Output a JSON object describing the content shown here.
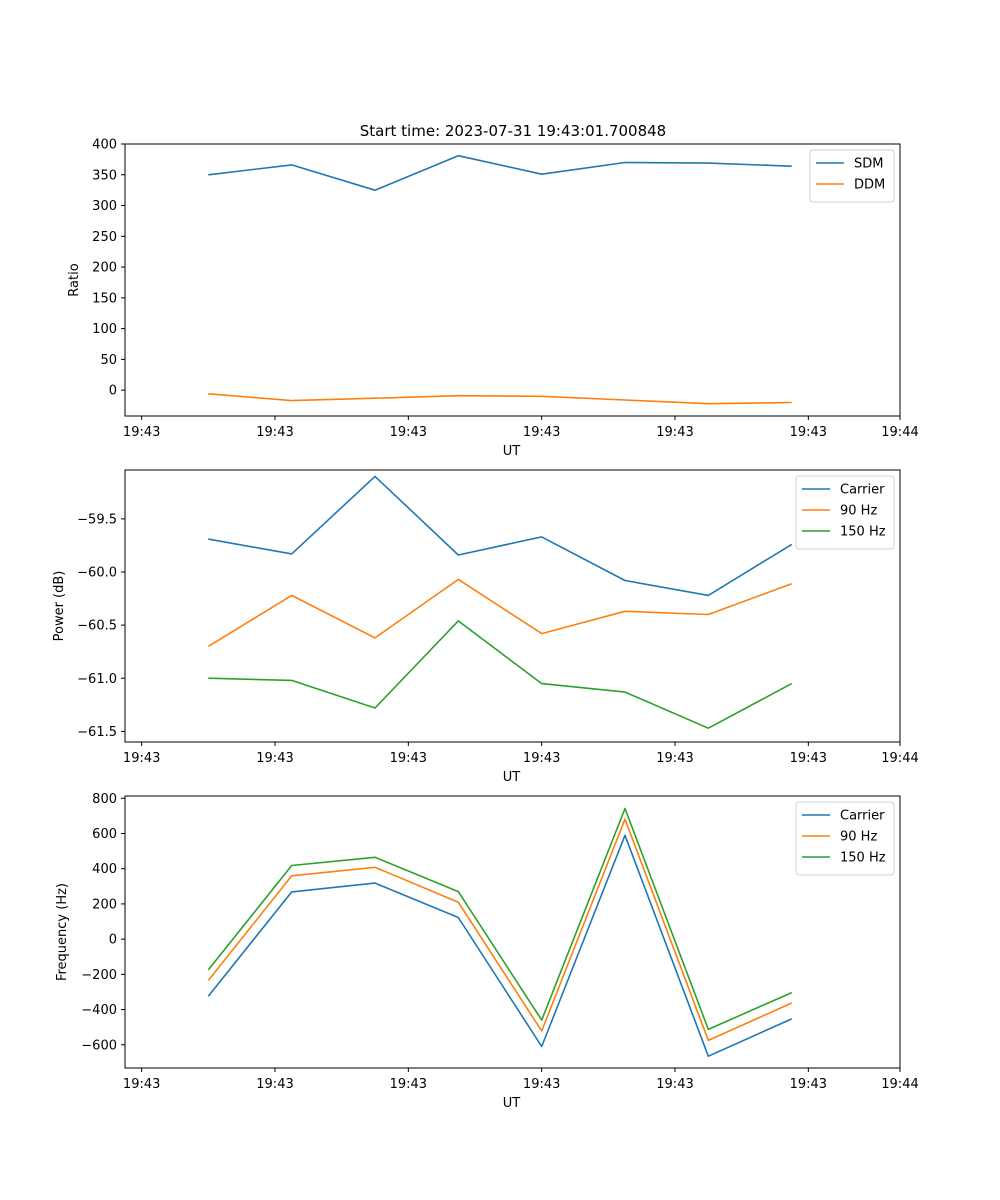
{
  "figure_title": "Start time: 2023-07-31 19:43:01.700848",
  "colors": {
    "blue": "#1f77b4",
    "orange": "#ff7f0e",
    "green": "#2ca02c"
  },
  "chart_data": [
    {
      "type": "line",
      "title": "Start time: 2023-07-31 19:43:01.700848",
      "xlabel": "UT",
      "ylabel": "Ratio",
      "x": [
        0.5,
        1.0,
        1.5,
        2.0,
        2.5,
        3.0,
        3.5,
        4.0
      ],
      "xlim": [
        0,
        4.65
      ],
      "xticks": [
        0.1,
        0.9,
        1.7,
        2.5,
        3.3,
        4.1,
        4.65
      ],
      "xtick_labels": [
        "19:43",
        "19:43",
        "19:43",
        "19:43",
        "19:43",
        "19:43",
        "19:44"
      ],
      "ylim": [
        -42,
        400
      ],
      "yticks": [
        0,
        50,
        100,
        150,
        200,
        250,
        300,
        350,
        400
      ],
      "ytick_labels": [
        "0",
        "50",
        "100",
        "150",
        "200",
        "250",
        "300",
        "350",
        "400"
      ],
      "legend_position": "top-right",
      "series": [
        {
          "name": "SDM",
          "color": "#1f77b4",
          "values": [
            350,
            366,
            325,
            381,
            351,
            370,
            369,
            364
          ]
        },
        {
          "name": "DDM",
          "color": "#ff7f0e",
          "values": [
            -6,
            -17,
            -13,
            -9,
            -10,
            -16,
            -22,
            -20
          ]
        }
      ]
    },
    {
      "type": "line",
      "title": "",
      "xlabel": "UT",
      "ylabel": "Power (dB)",
      "x": [
        0.5,
        1.0,
        1.5,
        2.0,
        2.5,
        3.0,
        3.5,
        4.0
      ],
      "xlim": [
        0,
        4.65
      ],
      "xticks": [
        0.1,
        0.9,
        1.7,
        2.5,
        3.3,
        4.1,
        4.65
      ],
      "xtick_labels": [
        "19:43",
        "19:43",
        "19:43",
        "19:43",
        "19:43",
        "19:43",
        "19:44"
      ],
      "ylim": [
        -61.6,
        -59.04
      ],
      "yticks": [
        -59.5,
        -60.0,
        -60.5,
        -61.0,
        -61.5
      ],
      "ytick_labels": [
        "−59.5",
        "−60.0",
        "−60.5",
        "−61.0",
        "−61.5"
      ],
      "legend_position": "top-right",
      "series": [
        {
          "name": "Carrier",
          "color": "#1f77b4",
          "values": [
            -59.69,
            -59.83,
            -59.1,
            -59.84,
            -59.67,
            -60.08,
            -60.22,
            -59.74
          ]
        },
        {
          "name": "90 Hz",
          "color": "#ff7f0e",
          "values": [
            -60.7,
            -60.22,
            -60.62,
            -60.07,
            -60.58,
            -60.37,
            -60.4,
            -60.11
          ]
        },
        {
          "name": "150 Hz",
          "color": "#2ca02c",
          "values": [
            -61.0,
            -61.02,
            -61.28,
            -60.46,
            -61.05,
            -61.13,
            -61.47,
            -61.05
          ]
        }
      ]
    },
    {
      "type": "line",
      "title": "",
      "xlabel": "UT",
      "ylabel": "Frequency (Hz)",
      "x": [
        0.5,
        1.0,
        1.5,
        2.0,
        2.5,
        3.0,
        3.5,
        4.0
      ],
      "xlim": [
        0,
        4.65
      ],
      "xticks": [
        0.1,
        0.9,
        1.7,
        2.5,
        3.3,
        4.1,
        4.65
      ],
      "xtick_labels": [
        "19:43",
        "19:43",
        "19:43",
        "19:43",
        "19:43",
        "19:43",
        "19:44"
      ],
      "ylim": [
        -732,
        813
      ],
      "yticks": [
        800,
        600,
        400,
        200,
        0,
        -200,
        -400,
        -600
      ],
      "ytick_labels": [
        "800",
        "600",
        "400",
        "200",
        "0",
        "−200",
        "−400",
        "−600"
      ],
      "legend_position": "top-right",
      "series": [
        {
          "name": "Carrier",
          "color": "#1f77b4",
          "values": [
            -325,
            268,
            318,
            123,
            -610,
            590,
            -665,
            -453
          ]
        },
        {
          "name": "90 Hz",
          "color": "#ff7f0e",
          "values": [
            -235,
            360,
            408,
            210,
            -522,
            682,
            -575,
            -363
          ]
        },
        {
          "name": "150 Hz",
          "color": "#2ca02c",
          "values": [
            -175,
            418,
            465,
            270,
            -460,
            742,
            -513,
            -304
          ]
        }
      ]
    }
  ]
}
